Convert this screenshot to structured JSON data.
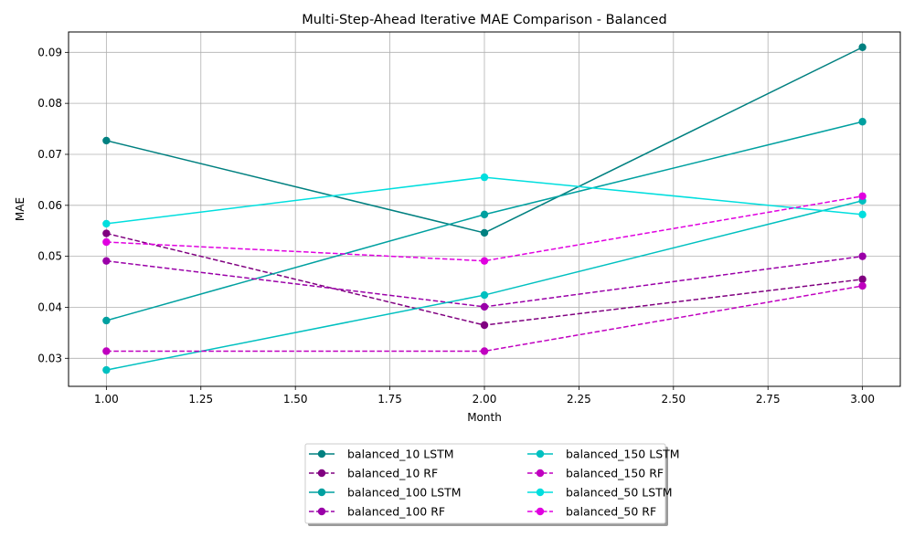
{
  "chart_data": {
    "type": "line",
    "title": "Multi-Step-Ahead Iterative MAE Comparison - Balanced",
    "xlabel": "Month",
    "ylabel": "MAE",
    "xlim": [
      0.9,
      3.1
    ],
    "ylim": [
      0.0245,
      0.094
    ],
    "x_ticks": [
      "1.00",
      "1.25",
      "1.50",
      "1.75",
      "2.00",
      "2.25",
      "2.50",
      "2.75",
      "3.00"
    ],
    "y_ticks": [
      "0.03",
      "0.04",
      "0.05",
      "0.06",
      "0.07",
      "0.08",
      "0.09"
    ],
    "grid": true,
    "legend_position": "bottom-center",
    "x": [
      1,
      2,
      3
    ],
    "series": [
      {
        "name": "balanced_10 LSTM",
        "values": [
          0.0727,
          0.0546,
          0.091
        ],
        "color": "#008080",
        "style": "solid"
      },
      {
        "name": "balanced_10 RF",
        "values": [
          0.0545,
          0.0365,
          0.0455
        ],
        "color": "#800080",
        "style": "dashed"
      },
      {
        "name": "balanced_100 LSTM",
        "values": [
          0.0374,
          0.0582,
          0.0764
        ],
        "color": "#00a0a0",
        "style": "solid"
      },
      {
        "name": "balanced_100 RF",
        "values": [
          0.0491,
          0.0401,
          0.05
        ],
        "color": "#9a00a8",
        "style": "dashed"
      },
      {
        "name": "balanced_150 LSTM",
        "values": [
          0.0277,
          0.0424,
          0.0609
        ],
        "color": "#00c0c0",
        "style": "solid"
      },
      {
        "name": "balanced_150 RF",
        "values": [
          0.0314,
          0.0314,
          0.0442
        ],
        "color": "#c000c0",
        "style": "dashed"
      },
      {
        "name": "balanced_50 LSTM",
        "values": [
          0.0564,
          0.0655,
          0.0582
        ],
        "color": "#00dede",
        "style": "solid"
      },
      {
        "name": "balanced_50 RF",
        "values": [
          0.0528,
          0.0491,
          0.0618
        ],
        "color": "#e000e0",
        "style": "dashed"
      }
    ]
  }
}
